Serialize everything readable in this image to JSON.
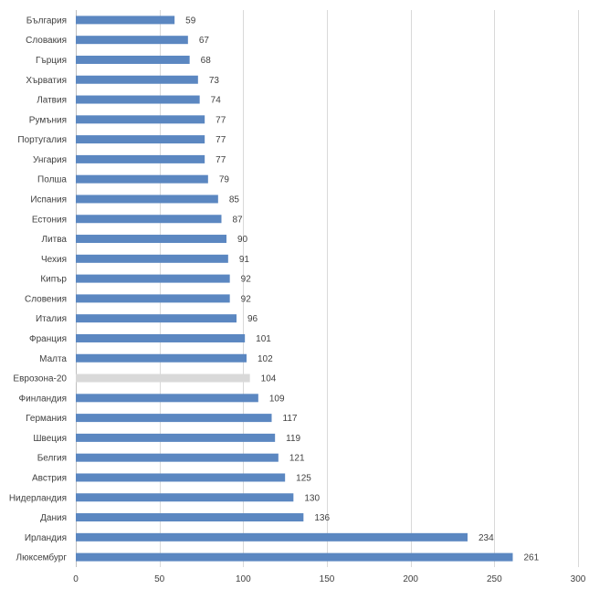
{
  "chart_data": {
    "type": "bar",
    "orientation": "horizontal",
    "categories": [
      "България",
      "Словакия",
      "Гърция",
      "Хърватия",
      "Латвия",
      "Румъния",
      "Португалия",
      "Унгария",
      "Полша",
      "Испания",
      "Естония",
      "Литва",
      "Чехия",
      "Кипър",
      "Словения",
      "Италия",
      "Франция",
      "Малта",
      "Еврозона-20",
      "Финландия",
      "Германия",
      "Швеция",
      "Белгия",
      "Австрия",
      "Нидерландия",
      "Дания",
      "Ирландия",
      "Люксембург"
    ],
    "values": [
      59,
      67,
      68,
      73,
      74,
      77,
      77,
      77,
      79,
      85,
      87,
      90,
      91,
      92,
      92,
      96,
      101,
      102,
      104,
      109,
      117,
      119,
      121,
      125,
      130,
      136,
      234,
      261
    ],
    "highlight_category": "Еврозона-20",
    "colors": {
      "bar": "#5B87C1",
      "highlight": "#D9D9D9",
      "grid": "#D9D9D9",
      "text": "#404040"
    },
    "xlim": [
      0,
      300
    ],
    "xticks": [
      0,
      50,
      100,
      150,
      200,
      250,
      300
    ],
    "grid": "vertical",
    "legend": "none",
    "title": "",
    "xlabel": "",
    "ylabel": ""
  }
}
